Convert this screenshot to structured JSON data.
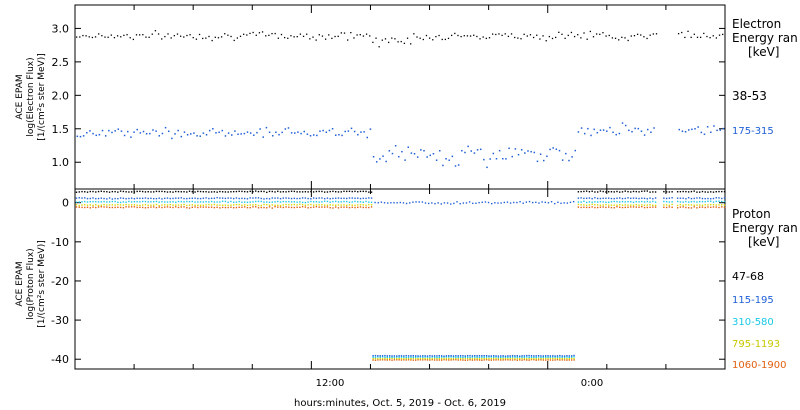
{
  "xaxis": {
    "label": "hours:minutes, Oct.  5, 2019 - Oct.  6, 2019",
    "tick_labels": [
      "12:00",
      "0:00"
    ],
    "range_hours": [
      -12,
      21
    ]
  },
  "colors": {
    "electron_38_53": "#000000",
    "electron_175_315": "#1f5fd6",
    "proton_47_68": "#000000",
    "proton_115_195": "#1f5fd6",
    "proton_310_580": "#19c8e6",
    "proton_795_1193": "#d8d800",
    "proton_1060_1900": "#e06010"
  },
  "chart_data": [
    {
      "type": "scatter",
      "panel": "electron",
      "ylabel": [
        "ACE EPAM",
        "log(Electron Flux)",
        "[1/(cm²s ster MeV)]"
      ],
      "ylim": [
        0.6,
        3.35
      ],
      "yticks": [
        "1.0",
        "1.5",
        "2.0",
        "2.5",
        "3.0"
      ],
      "legend_title": [
        "Electron",
        "Energy ran",
        "[keV]"
      ],
      "series": [
        {
          "name": "38-53",
          "level": 2.9,
          "segments": [
            [
              -12,
              17.5
            ],
            [
              18.5,
              21
            ]
          ]
        },
        {
          "name": "175-315",
          "level_values": [
            1.45,
            1.12,
            1.5
          ],
          "segments": [
            [
              -12,
              17.5
            ],
            [
              18.5,
              21
            ]
          ]
        }
      ]
    },
    {
      "type": "scatter",
      "panel": "proton",
      "ylabel": [
        "ACE EPAM",
        "log(Proton Flux)",
        "[1/(cm²s ster MeV)]"
      ],
      "ylim": [
        -42.5,
        3.5
      ],
      "yticks": [
        "-40",
        "-30",
        "-20",
        "-10",
        "0"
      ],
      "legend_title": [
        "Proton",
        "Energy ran",
        "[keV]"
      ],
      "series": [
        {
          "name": "47-68",
          "level": 3.0
        },
        {
          "name": "115-195",
          "level": 1.3
        },
        {
          "name": "310-580",
          "level": 0.4
        },
        {
          "name": "795-1193",
          "level": -0.4
        },
        {
          "name": "1060-1900",
          "level": -1.0
        }
      ],
      "gap_block": {
        "x_range": [
          3.1,
          13.4
        ],
        "level": -40.0
      }
    }
  ]
}
